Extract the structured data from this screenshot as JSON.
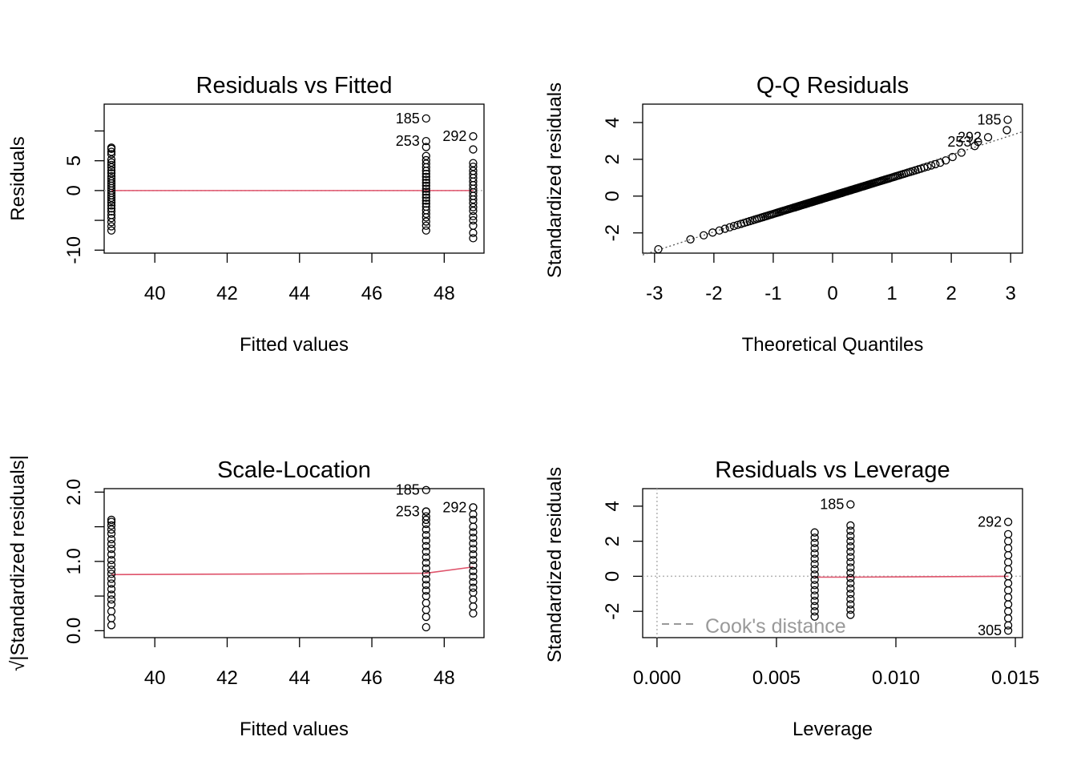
{
  "chart_data": [
    {
      "id": "rvf",
      "type": "scatter",
      "title": "Residuals vs Fitted",
      "xlabel": "Fitted values",
      "ylabel": "Residuals",
      "xlim": [
        38.6,
        49.1
      ],
      "ylim": [
        -10.5,
        14.5
      ],
      "xticks": [
        40,
        42,
        44,
        46,
        48
      ],
      "yticks": [
        -10,
        -5,
        0,
        5,
        10
      ],
      "ytick_labels": [
        "-10",
        "",
        "0",
        "5",
        ""
      ],
      "groups": [
        {
          "x": 38.8,
          "y": [
            -6.7,
            -6,
            -5.3,
            -4.6,
            -4.1,
            -3.5,
            -3,
            -2.5,
            -2,
            -1.6,
            -1.2,
            -0.8,
            -0.4,
            0,
            0.4,
            0.8,
            1.2,
            1.6,
            2,
            2.4,
            2.9,
            3.4,
            3.9,
            4.3,
            4.7,
            5.2,
            6.1,
            6.5,
            7,
            7.2
          ]
        },
        {
          "x": 47.5,
          "y": [
            -6.7,
            -5.9,
            -5.2,
            -4.5,
            -3.9,
            -3.3,
            -2.7,
            -2.2,
            -1.7,
            -1.2,
            -0.7,
            -0.2,
            0.3,
            0.8,
            1.3,
            1.8,
            2.3,
            2.8,
            3.3,
            3.9,
            4.5,
            5.1,
            5.8,
            7.3
          ]
        },
        {
          "x": 48.8,
          "y": [
            -8,
            -7.1,
            -5.9,
            -5,
            -4.3,
            -3.4,
            -2.8,
            -2.1,
            -1.5,
            -0.9,
            -0.3,
            0.3,
            0.9,
            1.5,
            2.1,
            2.7,
            3.3,
            4,
            4.6,
            6.9
          ]
        }
      ],
      "labeled_points": [
        {
          "label": "185",
          "x": 47.5,
          "y": 12.1
        },
        {
          "label": "253",
          "x": 47.5,
          "y": 8.3
        },
        {
          "label": "292",
          "x": 48.8,
          "y": 9.1
        }
      ],
      "smooth": {
        "x": [
          38.8,
          47.5,
          48.8
        ],
        "y": [
          0,
          0,
          0
        ]
      },
      "hline": 0
    },
    {
      "id": "qq",
      "type": "scatter",
      "title": "Q-Q Residuals",
      "xlabel": "Theoretical Quantiles",
      "ylabel": "Standardized residuals",
      "xlim": [
        -3.2,
        3.2
      ],
      "ylim": [
        -3.1,
        5.0
      ],
      "xticks": [
        -3,
        -2,
        -1,
        0,
        1,
        2,
        3
      ],
      "yticks": [
        -2,
        0,
        2,
        4
      ],
      "labeled_points": [
        {
          "label": "185",
          "x": 2.95,
          "y": 4.15
        },
        {
          "label": "292",
          "x": 2.62,
          "y": 3.2
        },
        {
          "label": "253",
          "x": 2.45,
          "y": 2.95
        }
      ],
      "points_generator": {
        "n": 301,
        "note": "normal quantile pairs"
      },
      "refline": {
        "x": [
          -3.2,
          3.2
        ],
        "y": [
          -3.2,
          3.5
        ]
      }
    },
    {
      "id": "sl",
      "type": "scatter",
      "title": "Scale-Location",
      "xlabel": "Fitted values",
      "ylabel": "√|Standardized residuals|",
      "xlim": [
        38.6,
        49.1
      ],
      "ylim": [
        -0.1,
        2.05
      ],
      "xticks": [
        40,
        42,
        44,
        46,
        48
      ],
      "yticks": [
        0,
        0.5,
        1.0,
        1.5,
        2.0
      ],
      "ytick_labels": [
        "0.0",
        "",
        "1.0",
        "",
        "2.0"
      ],
      "groups": [
        {
          "x": 38.8,
          "y": [
            0.08,
            0.18,
            0.28,
            0.38,
            0.45,
            0.52,
            0.6,
            0.68,
            0.75,
            0.82,
            0.88,
            0.95,
            1.02,
            1.1,
            1.18,
            1.25,
            1.32,
            1.4,
            1.46,
            1.52,
            1.57,
            1.6
          ]
        },
        {
          "x": 47.5,
          "y": [
            0.05,
            0.2,
            0.3,
            0.4,
            0.5,
            0.58,
            0.66,
            0.74,
            0.82,
            0.9,
            0.98,
            1.06,
            1.14,
            1.22,
            1.3,
            1.38,
            1.46,
            1.54,
            1.6,
            1.65,
            1.72
          ]
        },
        {
          "x": 48.8,
          "y": [
            0.25,
            0.35,
            0.45,
            0.55,
            0.62,
            0.7,
            0.78,
            0.86,
            0.94,
            1.02,
            1.1,
            1.18,
            1.26,
            1.34,
            1.42,
            1.5,
            1.6,
            1.68,
            1.78
          ]
        }
      ],
      "labeled_points": [
        {
          "label": "185",
          "x": 47.5,
          "y": 2.03
        },
        {
          "label": "253",
          "x": 47.5,
          "y": 1.72
        },
        {
          "label": "292",
          "x": 48.8,
          "y": 1.78
        }
      ],
      "smooth": {
        "x": [
          38.8,
          44.0,
          47.5,
          48.8
        ],
        "y": [
          0.81,
          0.82,
          0.83,
          0.92
        ]
      }
    },
    {
      "id": "rvl",
      "type": "scatter",
      "title": "Residuals vs Leverage",
      "xlabel": "Leverage",
      "ylabel": "Standardized residuals",
      "xlim": [
        -0.0006,
        0.0153
      ],
      "ylim": [
        -3.5,
        5.0
      ],
      "xticks": [
        0.0,
        0.005,
        0.01,
        0.015
      ],
      "xtick_labels": [
        "0.000",
        "0.005",
        "0.010",
        "0.015"
      ],
      "yticks": [
        -2,
        0,
        2,
        4
      ],
      "groups": [
        {
          "x": 0.0066,
          "y": [
            -2.3,
            -2.0,
            -1.7,
            -1.4,
            -1.1,
            -0.8,
            -0.5,
            -0.2,
            0.1,
            0.4,
            0.7,
            1.0,
            1.3,
            1.6,
            1.9,
            2.2,
            2.5
          ]
        },
        {
          "x": 0.0081,
          "y": [
            -2.2,
            -1.9,
            -1.6,
            -1.3,
            -1.0,
            -0.7,
            -0.4,
            -0.1,
            0.2,
            0.5,
            0.8,
            1.1,
            1.4,
            1.7,
            2.0,
            2.3,
            2.6,
            2.9
          ]
        },
        {
          "x": 0.0147,
          "y": [
            -2.8,
            -2.4,
            -2.0,
            -1.6,
            -1.2,
            -0.8,
            -0.4,
            0.0,
            0.4,
            0.8,
            1.2,
            1.6,
            2.0,
            2.4
          ]
        }
      ],
      "labeled_points": [
        {
          "label": "185",
          "x": 0.0081,
          "y": 4.1
        },
        {
          "label": "292",
          "x": 0.0147,
          "y": 3.1
        },
        {
          "label": "305",
          "x": 0.0147,
          "y": -3.1
        }
      ],
      "smooth": {
        "x": [
          0.0066,
          0.0081,
          0.0147
        ],
        "y": [
          -0.05,
          -0.05,
          0.0
        ]
      },
      "hline": 0,
      "vline": 0,
      "legend": {
        "text": "Cook's distance",
        "placement": "bottom-left"
      }
    }
  ]
}
